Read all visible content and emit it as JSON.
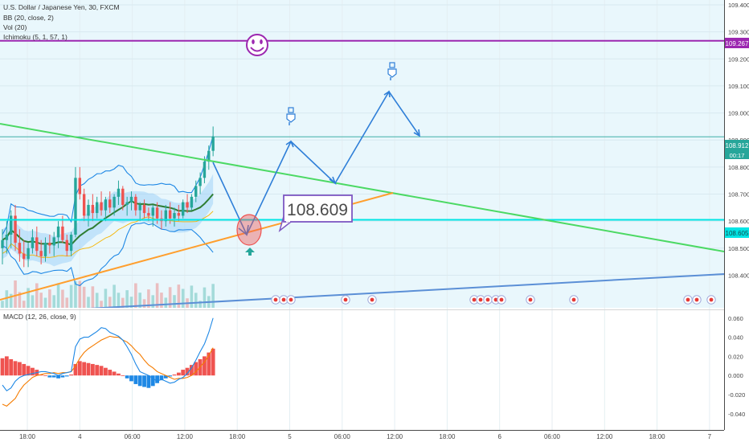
{
  "header": {
    "title": "U.S. Dollar / Japanese Yen, 30, FXCM",
    "indicators": [
      "BB (20, close, 2)",
      "Vol (20)",
      "Ichimoku (5, 1, 57, 1)"
    ]
  },
  "macd_label": "MACD (12, 26, close, 9)",
  "price_tags": {
    "last_price": "108.912",
    "countdown": "00:17",
    "resistance": "109.267",
    "support": "108.605"
  },
  "callout": "108.609",
  "colors": {
    "bull": "#26a69a",
    "bear": "#ef5350",
    "resistance": "#9c27b0",
    "support": "#00e5e5",
    "trend_down": "#4cd964",
    "trend_up": "#ff9f2e",
    "trend_long": "#5b8fd6",
    "projection": "#2f7fd8",
    "bb_band": "#1e88e5",
    "bb_basis": "#2e7d32",
    "cloud": "#90caf9",
    "callout_border": "#7e57c2"
  },
  "icons": [
    "smiley-icon",
    "pointing-hand-icon",
    "up-arrow-icon",
    "event-flag-icon"
  ],
  "chart_data": {
    "type": "candlestick",
    "symbol": "U.S. Dollar / Japanese Yen",
    "interval": "30",
    "ylim": [
      108.33,
      109.4
    ],
    "y_ticks": [
      "109.400",
      "109.300",
      "109.200",
      "109.100",
      "109.000",
      "108.900",
      "108.800",
      "108.700",
      "108.600",
      "108.500",
      "108.400"
    ],
    "x_ticks": [
      "18:00",
      "4",
      "06:00",
      "12:00",
      "18:00",
      "5",
      "06:00",
      "12:00",
      "18:00",
      "6",
      "06:00",
      "12:00",
      "18:00",
      "7"
    ],
    "last_price": 108.912,
    "levels": {
      "resistance": 109.267,
      "support": 108.605
    },
    "target_annotation": 108.609,
    "candles": [
      {
        "o": 108.5,
        "h": 108.57,
        "l": 108.44,
        "c": 108.53
      },
      {
        "o": 108.53,
        "h": 108.6,
        "l": 108.48,
        "c": 108.55
      },
      {
        "o": 108.55,
        "h": 108.64,
        "l": 108.5,
        "c": 108.62
      },
      {
        "o": 108.62,
        "h": 108.66,
        "l": 108.49,
        "c": 108.52
      },
      {
        "o": 108.52,
        "h": 108.57,
        "l": 108.45,
        "c": 108.48
      },
      {
        "o": 108.48,
        "h": 108.53,
        "l": 108.43,
        "c": 108.46
      },
      {
        "o": 108.46,
        "h": 108.52,
        "l": 108.43,
        "c": 108.5
      },
      {
        "o": 108.5,
        "h": 108.57,
        "l": 108.48,
        "c": 108.54
      },
      {
        "o": 108.54,
        "h": 108.58,
        "l": 108.47,
        "c": 108.49
      },
      {
        "o": 108.49,
        "h": 108.53,
        "l": 108.44,
        "c": 108.47
      },
      {
        "o": 108.47,
        "h": 108.54,
        "l": 108.45,
        "c": 108.52
      },
      {
        "o": 108.52,
        "h": 108.55,
        "l": 108.48,
        "c": 108.51
      },
      {
        "o": 108.51,
        "h": 108.56,
        "l": 108.47,
        "c": 108.54
      },
      {
        "o": 108.54,
        "h": 108.6,
        "l": 108.5,
        "c": 108.58
      },
      {
        "o": 108.58,
        "h": 108.62,
        "l": 108.52,
        "c": 108.53
      },
      {
        "o": 108.53,
        "h": 108.55,
        "l": 108.47,
        "c": 108.49
      },
      {
        "o": 108.49,
        "h": 108.56,
        "l": 108.47,
        "c": 108.55
      },
      {
        "o": 108.55,
        "h": 108.8,
        "l": 108.54,
        "c": 108.76
      },
      {
        "o": 108.76,
        "h": 108.8,
        "l": 108.68,
        "c": 108.7
      },
      {
        "o": 108.7,
        "h": 108.72,
        "l": 108.6,
        "c": 108.62
      },
      {
        "o": 108.62,
        "h": 108.68,
        "l": 108.58,
        "c": 108.66
      },
      {
        "o": 108.66,
        "h": 108.7,
        "l": 108.6,
        "c": 108.63
      },
      {
        "o": 108.63,
        "h": 108.69,
        "l": 108.61,
        "c": 108.67
      },
      {
        "o": 108.67,
        "h": 108.71,
        "l": 108.62,
        "c": 108.64
      },
      {
        "o": 108.64,
        "h": 108.69,
        "l": 108.6,
        "c": 108.68
      },
      {
        "o": 108.68,
        "h": 108.71,
        "l": 108.63,
        "c": 108.65
      },
      {
        "o": 108.65,
        "h": 108.7,
        "l": 108.62,
        "c": 108.69
      },
      {
        "o": 108.69,
        "h": 108.75,
        "l": 108.66,
        "c": 108.72
      },
      {
        "o": 108.72,
        "h": 108.73,
        "l": 108.64,
        "c": 108.66
      },
      {
        "o": 108.66,
        "h": 108.69,
        "l": 108.62,
        "c": 108.67
      },
      {
        "o": 108.67,
        "h": 108.71,
        "l": 108.64,
        "c": 108.69
      },
      {
        "o": 108.69,
        "h": 108.7,
        "l": 108.62,
        "c": 108.64
      },
      {
        "o": 108.64,
        "h": 108.67,
        "l": 108.6,
        "c": 108.66
      },
      {
        "o": 108.66,
        "h": 108.68,
        "l": 108.61,
        "c": 108.63
      },
      {
        "o": 108.63,
        "h": 108.65,
        "l": 108.6,
        "c": 108.62
      },
      {
        "o": 108.62,
        "h": 108.66,
        "l": 108.58,
        "c": 108.65
      },
      {
        "o": 108.65,
        "h": 108.67,
        "l": 108.59,
        "c": 108.61
      },
      {
        "o": 108.61,
        "h": 108.64,
        "l": 108.57,
        "c": 108.6
      },
      {
        "o": 108.6,
        "h": 108.66,
        "l": 108.58,
        "c": 108.64
      },
      {
        "o": 108.64,
        "h": 108.67,
        "l": 108.59,
        "c": 108.61
      },
      {
        "o": 108.61,
        "h": 108.65,
        "l": 108.58,
        "c": 108.63
      },
      {
        "o": 108.63,
        "h": 108.66,
        "l": 108.6,
        "c": 108.62
      },
      {
        "o": 108.62,
        "h": 108.68,
        "l": 108.61,
        "c": 108.67
      },
      {
        "o": 108.67,
        "h": 108.7,
        "l": 108.63,
        "c": 108.65
      },
      {
        "o": 108.65,
        "h": 108.7,
        "l": 108.64,
        "c": 108.69
      },
      {
        "o": 108.69,
        "h": 108.75,
        "l": 108.67,
        "c": 108.73
      },
      {
        "o": 108.73,
        "h": 108.78,
        "l": 108.7,
        "c": 108.76
      },
      {
        "o": 108.76,
        "h": 108.84,
        "l": 108.74,
        "c": 108.82
      },
      {
        "o": 108.82,
        "h": 108.88,
        "l": 108.79,
        "c": 108.86
      },
      {
        "o": 108.86,
        "h": 108.95,
        "l": 108.84,
        "c": 108.912
      }
    ],
    "macd_axis_ticks": [
      "0.060",
      "0.040",
      "0.020",
      "0.000",
      "-0.020",
      "-0.040"
    ],
    "macd_ylim": [
      -0.046,
      0.064
    ],
    "macd_hist": [
      0.018,
      0.02,
      0.017,
      0.015,
      0.014,
      0.012,
      0.01,
      0.008,
      0.006,
      0.001,
      0.0,
      -0.002,
      -0.002,
      -0.003,
      -0.002,
      -0.001,
      0.001,
      0.012,
      0.015,
      0.014,
      0.013,
      0.012,
      0.011,
      0.01,
      0.008,
      0.006,
      0.004,
      0.002,
      0.0,
      -0.003,
      -0.006,
      -0.009,
      -0.011,
      -0.012,
      -0.013,
      -0.011,
      -0.008,
      -0.005,
      -0.003,
      -0.001,
      0.001,
      0.003,
      0.006,
      0.008,
      0.011,
      0.014,
      0.017,
      0.02,
      0.024,
      0.028
    ],
    "macd_line": [
      -0.01,
      -0.016,
      -0.013,
      -0.006,
      -0.002,
      0.0,
      0.001,
      0.002,
      0.003,
      0.004,
      0.004,
      0.003,
      0.002,
      0.0,
      0.002,
      0.003,
      0.004,
      0.03,
      0.038,
      0.04,
      0.04,
      0.043,
      0.046,
      0.05,
      0.049,
      0.045,
      0.043,
      0.041,
      0.037,
      0.03,
      0.022,
      0.012,
      0.004,
      0.002,
      0.0,
      -0.003,
      -0.006,
      -0.004,
      -0.006,
      -0.008,
      -0.007,
      -0.004,
      -0.002,
      0.002,
      0.008,
      0.016,
      0.025,
      0.033,
      0.045,
      0.06
    ],
    "macd_signal": [
      -0.03,
      -0.032,
      -0.028,
      -0.024,
      -0.016,
      -0.01,
      -0.006,
      -0.002,
      0.0,
      0.001,
      0.002,
      0.002,
      0.003,
      0.002,
      0.003,
      0.003,
      0.004,
      0.01,
      0.018,
      0.024,
      0.028,
      0.031,
      0.034,
      0.037,
      0.039,
      0.041,
      0.04,
      0.04,
      0.037,
      0.035,
      0.031,
      0.026,
      0.022,
      0.016,
      0.011,
      0.008,
      0.004,
      0.002,
      0.0,
      -0.002,
      -0.004,
      -0.003,
      -0.003,
      -0.002,
      0.0,
      0.004,
      0.009,
      0.014,
      0.021,
      0.029
    ]
  }
}
